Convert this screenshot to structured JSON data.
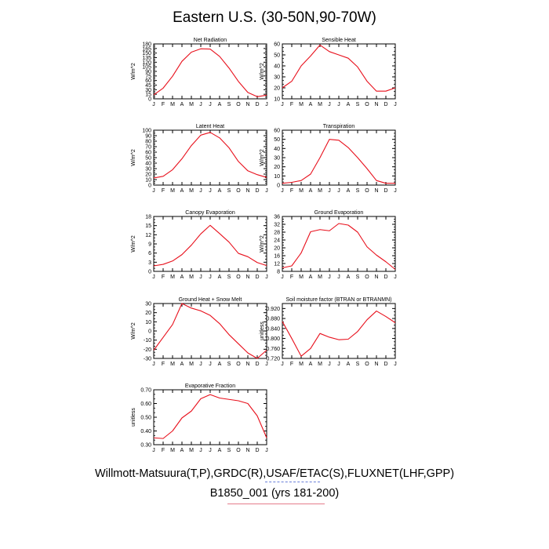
{
  "page": {
    "title": "Eastern U.S. (30-50N,90-70W)",
    "footer_line1": "Willmott-Matsuura(T,P),GRDC(R),USAF/ETAC(S),FLUXNET(LHF,GPP)",
    "footer_line2": "B1850_001 (yrs 181-200)"
  },
  "colors": {
    "line": "#e8101c",
    "axis": "#000000",
    "footer_underline_1": "#6a7fd8",
    "footer_underline_2": "#e57c8b"
  },
  "chart_data": [
    {
      "type": "line",
      "title": "Net Radiation",
      "ylabel": "W/m^2",
      "categories": [
        "J",
        "F",
        "M",
        "A",
        "M",
        "J",
        "J",
        "A",
        "S",
        "O",
        "N",
        "D",
        "J"
      ],
      "ylim": [
        0,
        180
      ],
      "yticks": [
        "0",
        "15",
        "30",
        "45",
        "60",
        "75",
        "90",
        "105",
        "120",
        "135",
        "150",
        "165",
        "180"
      ],
      "values": [
        13,
        35,
        74,
        123,
        153,
        164,
        163,
        139,
        101,
        57,
        21,
        7,
        12
      ]
    },
    {
      "type": "line",
      "title": "Sensible Heat",
      "ylabel": "W/m^2",
      "categories": [
        "J",
        "F",
        "M",
        "A",
        "M",
        "J",
        "J",
        "A",
        "S",
        "O",
        "N",
        "D",
        "J"
      ],
      "ylim": [
        10,
        60
      ],
      "yticks": [
        "10",
        "20",
        "30",
        "40",
        "50",
        "60"
      ],
      "values": [
        20,
        26,
        40,
        49,
        59,
        53,
        50,
        47,
        39,
        26,
        17,
        17,
        20
      ]
    },
    {
      "type": "line",
      "title": "Latent Heat",
      "ylabel": "W/m^2",
      "categories": [
        "J",
        "F",
        "M",
        "A",
        "M",
        "J",
        "J",
        "A",
        "S",
        "O",
        "N",
        "D",
        "J"
      ],
      "ylim": [
        0,
        100
      ],
      "yticks": [
        "0",
        "10",
        "20",
        "30",
        "40",
        "50",
        "60",
        "70",
        "80",
        "90",
        "100"
      ],
      "values": [
        13,
        16,
        28,
        48,
        72,
        91,
        96,
        86,
        68,
        43,
        26,
        19,
        14
      ]
    },
    {
      "type": "line",
      "title": "Transpiration",
      "ylabel": "W/m^2",
      "categories": [
        "J",
        "F",
        "M",
        "A",
        "M",
        "J",
        "J",
        "A",
        "S",
        "O",
        "N",
        "D",
        "J"
      ],
      "ylim": [
        0,
        60
      ],
      "yticks": [
        "0",
        "10",
        "20",
        "30",
        "40",
        "50",
        "60"
      ],
      "values": [
        2,
        3,
        5,
        12,
        30,
        50,
        49,
        41,
        30,
        18,
        5,
        2,
        2
      ]
    },
    {
      "type": "line",
      "title": "Canopy Evaporation",
      "ylabel": "W/m^2",
      "categories": [
        "J",
        "F",
        "M",
        "A",
        "M",
        "J",
        "J",
        "A",
        "S",
        "O",
        "N",
        "D",
        "J"
      ],
      "ylim": [
        0,
        18
      ],
      "yticks": [
        "0",
        "3",
        "6",
        "9",
        "12",
        "15",
        "18"
      ],
      "values": [
        1.8,
        2.3,
        3.4,
        5.5,
        8.6,
        12.3,
        15.1,
        12.4,
        9.6,
        5.9,
        4.8,
        2.9,
        1.9
      ]
    },
    {
      "type": "line",
      "title": "Ground Evaporation",
      "ylabel": "W/m^2",
      "categories": [
        "J",
        "F",
        "M",
        "A",
        "M",
        "J",
        "J",
        "A",
        "S",
        "O",
        "N",
        "D",
        "J"
      ],
      "ylim": [
        8,
        36
      ],
      "yticks": [
        "8",
        "12",
        "16",
        "20",
        "24",
        "28",
        "32",
        "36"
      ],
      "values": [
        9.8,
        10.8,
        17.4,
        28.2,
        29.3,
        28.7,
        32.4,
        31.6,
        28.0,
        20.5,
        16.3,
        12.9,
        9.0
      ]
    },
    {
      "type": "line",
      "title": "Ground Heat + Snow Melt",
      "ylabel": "W/m^2",
      "categories": [
        "J",
        "F",
        "M",
        "A",
        "M",
        "J",
        "J",
        "A",
        "S",
        "O",
        "N",
        "D",
        "J"
      ],
      "ylim": [
        -30,
        30
      ],
      "yticks": [
        "-30",
        "-20",
        "-10",
        "0",
        "10",
        "20",
        "30"
      ],
      "values": [
        -21,
        -7,
        7,
        30,
        25,
        22,
        17,
        8,
        -4,
        -14,
        -24,
        -30,
        -21
      ]
    },
    {
      "type": "line",
      "title": "Soil moisture factor (BTRAN or BTRANMN)",
      "ylabel": "unitless",
      "categories": [
        "J",
        "F",
        "M",
        "A",
        "M",
        "J",
        "J",
        "A",
        "S",
        "O",
        "N",
        "D",
        "J"
      ],
      "ylim": [
        0.72,
        0.94
      ],
      "yticks": [
        "0.720",
        "0.760",
        "0.800",
        "0.840",
        "0.880",
        "0.920"
      ],
      "values": [
        0.868,
        0.8,
        0.729,
        0.76,
        0.82,
        0.805,
        0.795,
        0.797,
        0.828,
        0.875,
        0.91,
        0.888,
        0.863
      ]
    },
    {
      "type": "line",
      "title": "Evaporative Fraction",
      "ylabel": "unitless",
      "categories": [
        "J",
        "F",
        "M",
        "A",
        "M",
        "J",
        "J",
        "A",
        "S",
        "O",
        "N",
        "D",
        "J"
      ],
      "ylim": [
        0.3,
        0.7
      ],
      "yticks": [
        "0.30",
        "0.40",
        "0.50",
        "0.60",
        "0.70"
      ],
      "values": [
        0.35,
        0.345,
        0.4,
        0.495,
        0.545,
        0.635,
        0.665,
        0.64,
        0.63,
        0.62,
        0.6,
        0.51,
        0.35
      ]
    }
  ]
}
